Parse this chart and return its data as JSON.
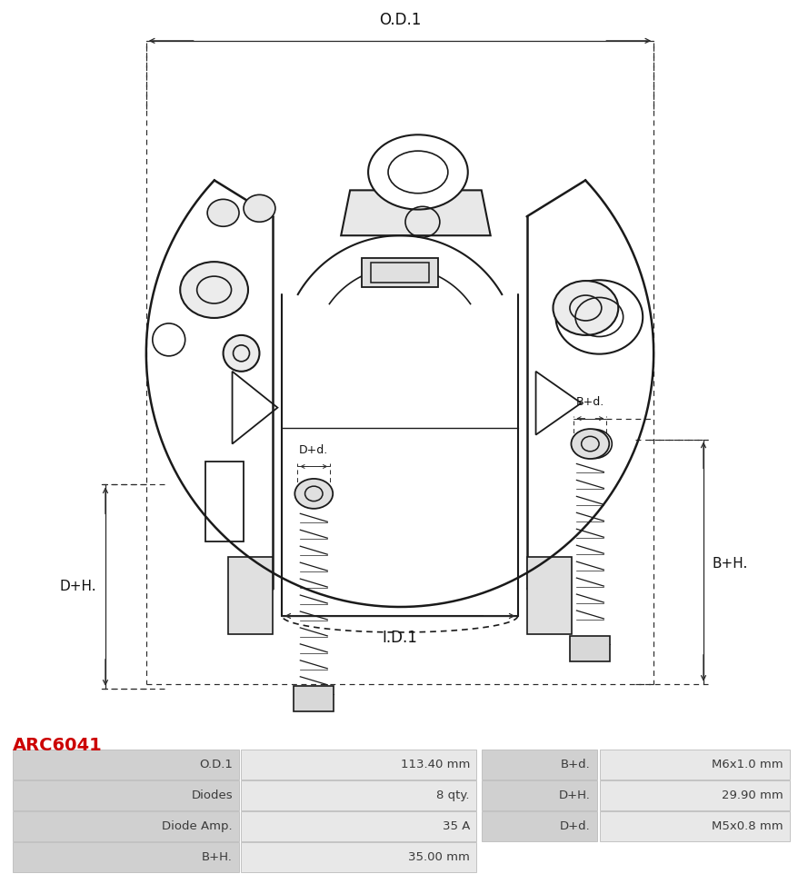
{
  "title_text": "ARC6041",
  "title_color": "#CC0000",
  "background_color": "#ffffff",
  "table": {
    "rows": [
      [
        "O.D.1",
        "113.40 mm",
        "B+d.",
        "M6x1.0 mm"
      ],
      [
        "Diodes",
        "8 qty.",
        "D+H.",
        "29.90 mm"
      ],
      [
        "Diode Amp.",
        "35 A",
        "D+d.",
        "M5x0.8 mm"
      ],
      [
        "B+H.",
        "35.00 mm",
        "",
        ""
      ]
    ]
  },
  "dim_labels": {
    "OD1": "O.D.1",
    "ID1": "I.D.1",
    "DH": "D+H.",
    "BH": "B+H.",
    "Dd": "D+d.",
    "Bd": "B+d."
  },
  "colors": {
    "line": "#1a1a1a",
    "dim": "#2a2a2a",
    "fill_light": "#f0f0f0",
    "fill_mid": "#d8d8d8",
    "fill_dark": "#b0b0b0"
  }
}
